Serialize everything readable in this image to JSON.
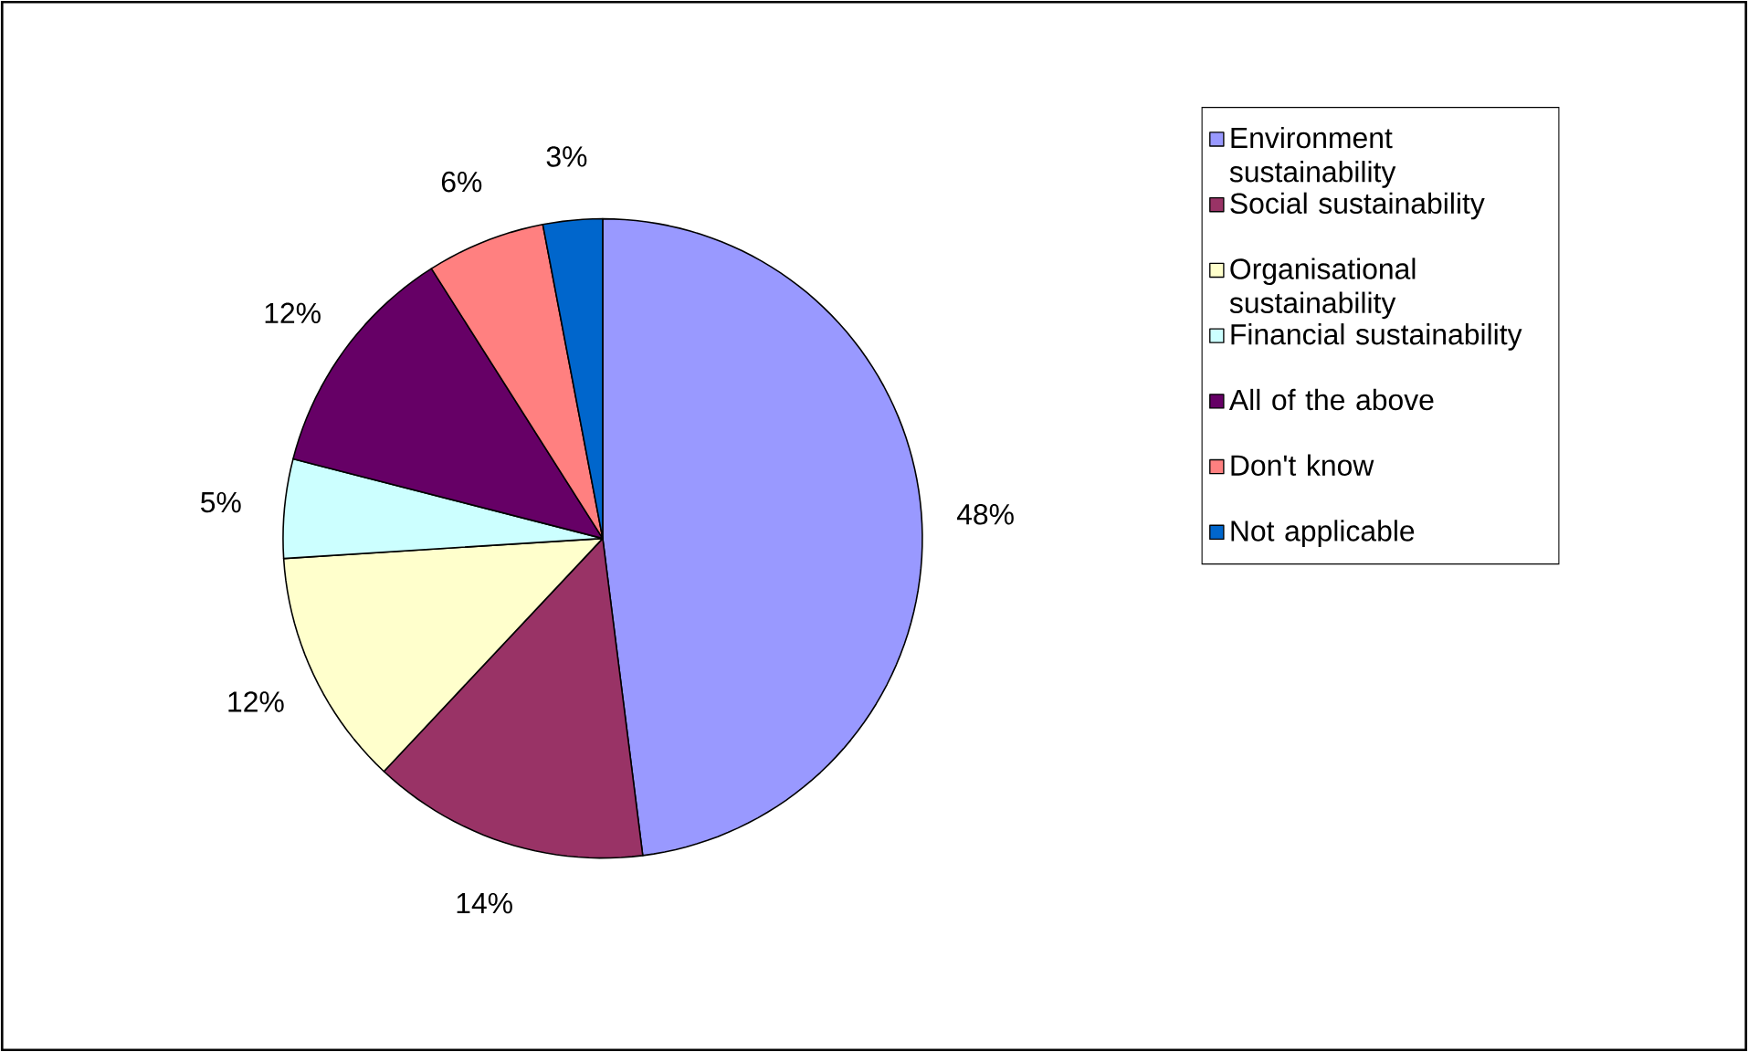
{
  "chart_data": {
    "type": "pie",
    "categories": [
      "Environment sustainability",
      "Social sustainability",
      "Organisational sustainability",
      "Financial sustainability",
      "All of the above",
      "Don't know",
      "Not applicable"
    ],
    "values": [
      48,
      14,
      12,
      5,
      12,
      6,
      3
    ],
    "value_labels": [
      "48%",
      "14%",
      "12%",
      "5%",
      "12%",
      "6%",
      "3%"
    ],
    "colors": [
      "#9999ff",
      "#993366",
      "#ffffcc",
      "#ccffff",
      "#660066",
      "#ff8080",
      "#0066cc"
    ],
    "legend": "right"
  }
}
